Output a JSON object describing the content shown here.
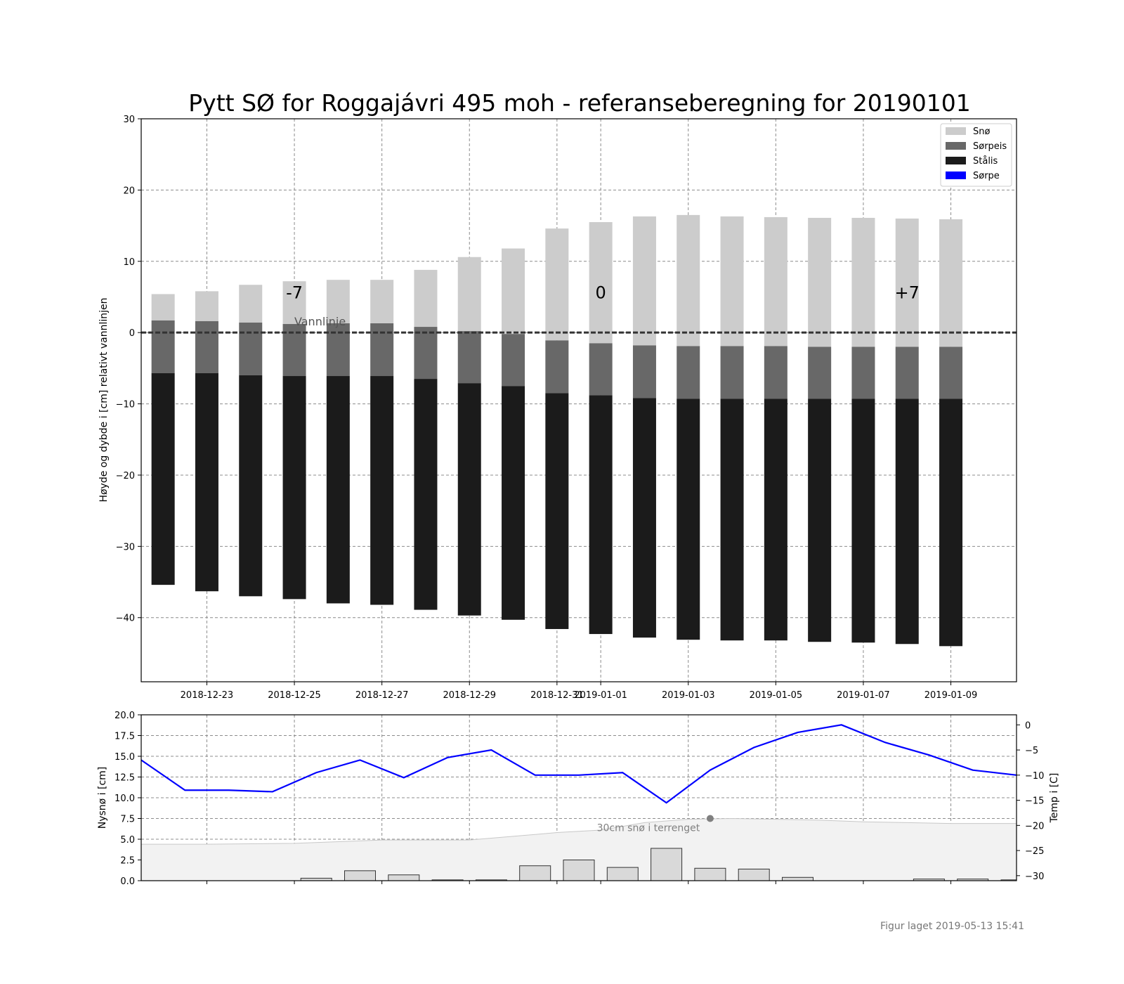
{
  "figure": {
    "title": "Pytt SØ for Roggajávri 495 moh - referanseberegning for 20190101",
    "footer": "Figur laget 2019-05-13 15:41"
  },
  "chart_data": [
    {
      "type": "bar",
      "stacked": true,
      "title": "Pytt SØ for Roggajávri 495 moh - referanseberegning for 20190101",
      "ylabel": "Høyde og dybde i [cm] relativt vannlinjen",
      "xlabel": "",
      "ylim": [
        -49,
        30
      ],
      "yticks": [
        -40,
        -30,
        -20,
        -10,
        0,
        10,
        20,
        30
      ],
      "xlim": [
        -0.5,
        19.5
      ],
      "xticks": [
        {
          "x": 1,
          "label": "2018-12-23"
        },
        {
          "x": 3,
          "label": "2018-12-25"
        },
        {
          "x": 5,
          "label": "2018-12-27"
        },
        {
          "x": 7,
          "label": "2018-12-29"
        },
        {
          "x": 9,
          "label": "2018-12-31"
        },
        {
          "x": 10,
          "label": "2019-01-01"
        },
        {
          "x": 12,
          "label": "2019-01-03"
        },
        {
          "x": 14,
          "label": "2019-01-05"
        },
        {
          "x": 16,
          "label": "2019-01-07"
        },
        {
          "x": 18,
          "label": "2019-01-09"
        }
      ],
      "grid": true,
      "legend_position": "top-right",
      "dates": [
        "2018-12-22",
        "2018-12-23",
        "2018-12-24",
        "2018-12-25",
        "2018-12-26",
        "2018-12-27",
        "2018-12-28",
        "2018-12-29",
        "2018-12-30",
        "2018-12-31",
        "2019-01-01",
        "2019-01-02",
        "2019-01-03",
        "2019-01-04",
        "2019-01-05",
        "2019-01-06",
        "2019-01-07",
        "2019-01-08",
        "2019-01-09"
      ],
      "series": [
        {
          "name": "Snø",
          "color": "#cccccc",
          "bottom": [
            1.7,
            1.6,
            1.4,
            1.2,
            1.3,
            1.3,
            0.8,
            0.2,
            -0.2,
            -1.1,
            -1.5,
            -1.8,
            -1.9,
            -1.9,
            -1.9,
            -2.0,
            -2.0,
            -2.0,
            -2.0
          ],
          "top": [
            5.4,
            5.8,
            6.7,
            7.2,
            7.4,
            7.4,
            8.8,
            10.6,
            11.8,
            14.6,
            15.5,
            16.3,
            16.5,
            16.3,
            16.2,
            16.1,
            16.1,
            16.0,
            15.9
          ]
        },
        {
          "name": "Sørpeis",
          "color": "#686868",
          "bottom": [
            -5.7,
            -5.7,
            -6.0,
            -6.1,
            -6.1,
            -6.1,
            -6.5,
            -7.1,
            -7.5,
            -8.5,
            -8.8,
            -9.2,
            -9.3,
            -9.3,
            -9.3,
            -9.3,
            -9.3,
            -9.3,
            -9.3
          ],
          "top": [
            1.7,
            1.6,
            1.4,
            1.2,
            1.3,
            1.3,
            0.8,
            0.2,
            -0.2,
            -1.1,
            -1.5,
            -1.8,
            -1.9,
            -1.9,
            -1.9,
            -2.0,
            -2.0,
            -2.0,
            -2.0
          ]
        },
        {
          "name": "Stålis",
          "color": "#1b1b1b",
          "bottom": [
            -35.4,
            -36.3,
            -37.0,
            -37.4,
            -38.0,
            -38.2,
            -38.9,
            -39.7,
            -40.3,
            -41.6,
            -42.3,
            -42.8,
            -43.1,
            -43.2,
            -43.2,
            -43.4,
            -43.5,
            -43.7,
            -44.0
          ],
          "top": [
            -5.7,
            -5.7,
            -6.0,
            -6.1,
            -6.1,
            -6.1,
            -6.5,
            -7.1,
            -7.5,
            -8.5,
            -8.8,
            -9.2,
            -9.3,
            -9.3,
            -9.3,
            -9.3,
            -9.3,
            -9.3,
            -9.3
          ]
        },
        {
          "name": "Sørpe",
          "color": "#0000ff",
          "bottom": [],
          "top": []
        }
      ],
      "reference_line": {
        "y": 0,
        "label": "Vannlinje"
      },
      "annotations": [
        {
          "x": 3,
          "y": 4.8,
          "text": "-7"
        },
        {
          "x": 10,
          "y": 4.8,
          "text": "0"
        },
        {
          "x": 17,
          "y": 4.8,
          "text": "+7"
        }
      ]
    },
    {
      "type": "bar",
      "ylabel": "Nysnø i [cm]",
      "y2label": "Temp i [C]",
      "ylim": [
        0,
        20
      ],
      "yticks": [
        0.0,
        2.5,
        5.0,
        7.5,
        10.0,
        12.5,
        15.0,
        17.5,
        20.0
      ],
      "y2lim": [
        -31,
        2
      ],
      "y2ticks": [
        -30,
        -25,
        -20,
        -15,
        -10,
        -5,
        0
      ],
      "xlim": [
        -0.5,
        19.5
      ],
      "grid": true,
      "new_snow": {
        "x": [
          2.5,
          3.5,
          4.5,
          5.5,
          6.5,
          7.5,
          8.5,
          9.5,
          10.5,
          11.5,
          12.5,
          13.5,
          14.5,
          15.5,
          16.5,
          17.5,
          18.5,
          19.5
        ],
        "values": [
          0.0,
          0.3,
          1.2,
          0.7,
          0.1,
          0.1,
          1.8,
          2.5,
          1.6,
          3.9,
          1.5,
          1.4,
          0.4,
          0.0,
          0.0,
          0.2,
          0.2,
          0.1
        ]
      },
      "snow_in_terrain": {
        "x": [
          -0.5,
          1,
          3,
          5,
          7,
          9,
          10,
          11,
          12,
          13,
          14,
          15,
          16,
          17,
          18,
          19.5
        ],
        "values": [
          4.4,
          4.4,
          4.5,
          4.9,
          4.9,
          5.8,
          6.1,
          7.0,
          7.4,
          7.5,
          7.4,
          7.3,
          7.1,
          7.0,
          6.9,
          6.9
        ],
        "color": "#f2f2f2"
      },
      "snow_marker": {
        "x": 12.5,
        "y": 7.5,
        "label": "30cm snø i terrenget"
      },
      "temperature": {
        "color": "#0000ff",
        "x": [
          -0.5,
          0.5,
          1.5,
          2.5,
          3.5,
          4.5,
          5.5,
          6.5,
          7.5,
          8.5,
          9.5,
          10.5,
          11.5,
          12.5,
          13.5,
          14.5,
          15.5,
          16.5,
          17.5,
          18.5,
          19.5
        ],
        "values": [
          -7.0,
          -13.0,
          -13.0,
          -13.3,
          -9.5,
          -7.0,
          -10.5,
          -6.5,
          -5.0,
          -10.0,
          -10.0,
          -9.5,
          -15.5,
          -9.0,
          -4.5,
          -1.5,
          0.0,
          -3.5,
          -6.0,
          -9.0,
          -10.0
        ]
      }
    }
  ]
}
